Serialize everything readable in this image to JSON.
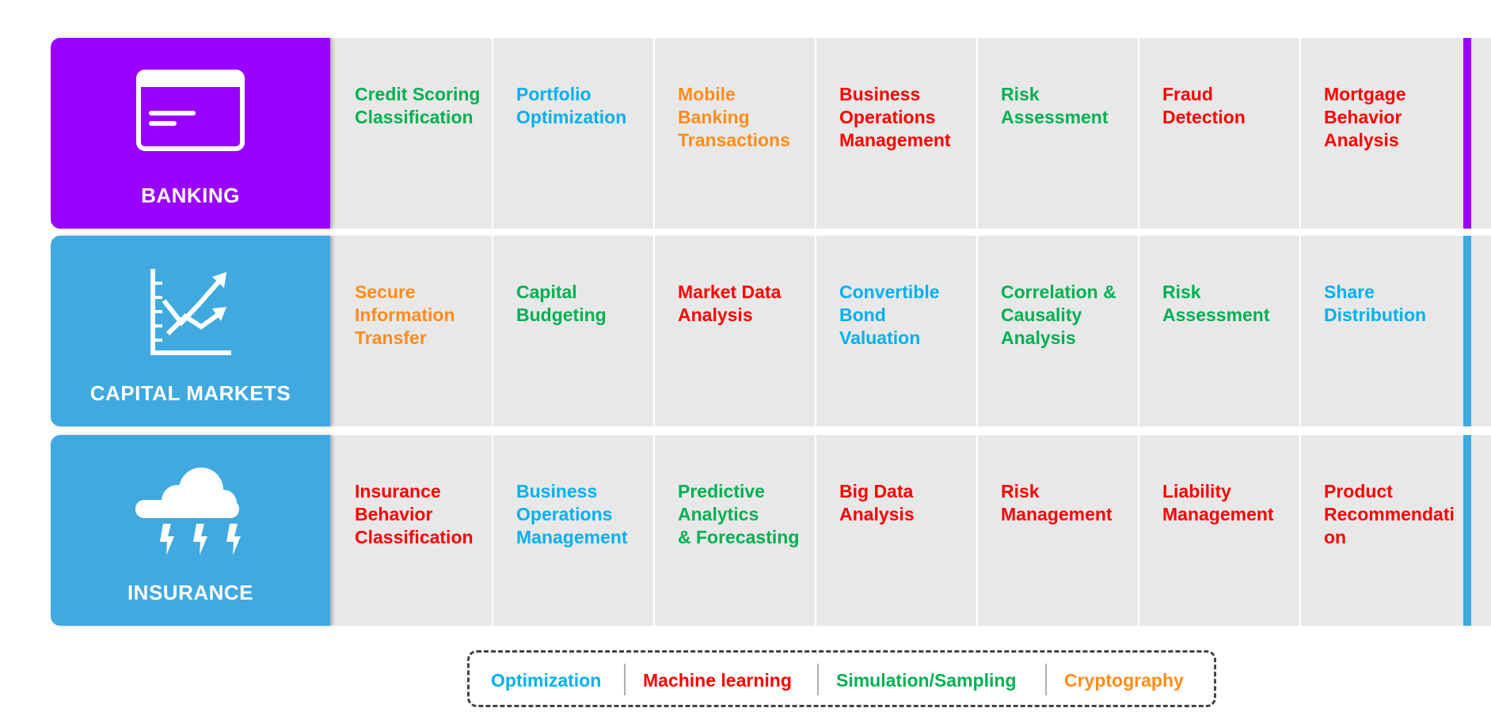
{
  "colors": {
    "banking": "#9900ff",
    "capital_markets": "#3fa9e0",
    "insurance": "#3fa9e0",
    "optimization": "#00b0f0",
    "machine_learning": "#ff0000",
    "simulation": "#00b050",
    "cryptography": "#ff8c1a"
  },
  "rows": [
    {
      "label": "BANKING",
      "icon": "credit-card-icon",
      "cells": [
        {
          "text": "Credit Scoring\nClassification",
          "category": "simulation"
        },
        {
          "text": "Portfolio\nOptimization",
          "category": "optimization"
        },
        {
          "text": "Mobile\nBanking\nTransactions",
          "category": "cryptography"
        },
        {
          "text": "Business\nOperations\nManagement",
          "category": "machine_learning"
        },
        {
          "text": "Risk\nAssessment",
          "category": "simulation"
        },
        {
          "text": "Fraud\nDetection",
          "category": "machine_learning"
        },
        {
          "text": "Mortgage\nBehavior\nAnalysis",
          "category": "machine_learning"
        }
      ]
    },
    {
      "label": "CAPITAL MARKETS",
      "icon": "line-chart-icon",
      "cells": [
        {
          "text": "Secure\nInformation\nTransfer",
          "category": "cryptography"
        },
        {
          "text": "Capital\nBudgeting",
          "category": "simulation"
        },
        {
          "text": "Market Data\nAnalysis",
          "category": "machine_learning"
        },
        {
          "text": "Convertible\nBond\nValuation",
          "category": "optimization"
        },
        {
          "text": "Correlation &\nCausality\nAnalysis",
          "category": "simulation"
        },
        {
          "text": "Risk\nAssessment",
          "category": "simulation"
        },
        {
          "text": "Share\nDistribution",
          "category": "optimization"
        }
      ]
    },
    {
      "label": "INSURANCE",
      "icon": "storm-cloud-icon",
      "cells": [
        {
          "text": "Insurance\nBehavior\nClassification",
          "category": "machine_learning"
        },
        {
          "text": "Business\nOperations\nManagement",
          "category": "optimization"
        },
        {
          "text": "Predictive\nAnalytics\n& Forecasting",
          "category": "simulation"
        },
        {
          "text": "Big Data\nAnalysis",
          "category": "machine_learning"
        },
        {
          "text": "Risk\nManagement",
          "category": "machine_learning"
        },
        {
          "text": "Liability\nManagement",
          "category": "machine_learning"
        },
        {
          "text": "Product\nRecommendati\non",
          "category": "machine_learning"
        }
      ]
    }
  ],
  "legend": [
    {
      "label": "Optimization",
      "category": "optimization"
    },
    {
      "label": "Machine learning",
      "category": "machine_learning"
    },
    {
      "label": "Simulation/Sampling",
      "category": "simulation"
    },
    {
      "label": "Cryptography",
      "category": "cryptography"
    }
  ]
}
